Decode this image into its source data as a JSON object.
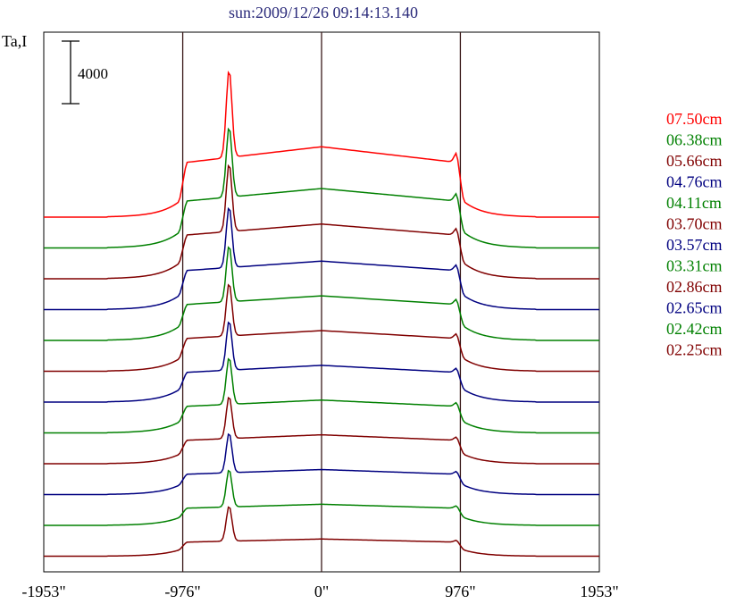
{
  "chart_data": {
    "type": "line",
    "title": "sun:2009/12/26 09:14:13.140",
    "ylabel": "Ta,I",
    "xlabel": "",
    "xlim": [
      -1953,
      1953
    ],
    "x_ticks": [
      -1953,
      -976,
      0,
      976,
      1953
    ],
    "x_tick_labels": [
      "-1953\"",
      "-976\"",
      "0\"",
      "976\"",
      "1953\""
    ],
    "vertical_lines_at": [
      -976,
      0,
      976
    ],
    "scale_bar": {
      "label": "4000",
      "value": 4000
    },
    "grid": false,
    "legend_position": "right",
    "series": [
      {
        "name": "07.50cm",
        "color": "#ff0000",
        "offset": 0,
        "peak": 7500,
        "tail": 1000,
        "limb": 1000,
        "rise": 3500
      },
      {
        "name": "06.38cm",
        "color": "#008000",
        "offset": 1,
        "peak": 6000,
        "tail": 1000,
        "limb": 800,
        "rise": 3000
      },
      {
        "name": "05.66cm",
        "color": "#800000",
        "offset": 2,
        "peak": 5800,
        "tail": 1000,
        "limb": 700,
        "rise": 2800
      },
      {
        "name": "04.76cm",
        "color": "#000080",
        "offset": 3,
        "peak": 5200,
        "tail": 900,
        "limb": 600,
        "rise": 2500
      },
      {
        "name": "04.11cm",
        "color": "#008000",
        "offset": 4,
        "peak": 4800,
        "tail": 900,
        "limb": 550,
        "rise": 2300
      },
      {
        "name": "03.70cm",
        "color": "#800000",
        "offset": 5,
        "peak": 4500,
        "tail": 800,
        "limb": 500,
        "rise": 2100
      },
      {
        "name": "03.57cm",
        "color": "#000080",
        "offset": 6,
        "peak": 4200,
        "tail": 800,
        "limb": 450,
        "rise": 1900
      },
      {
        "name": "03.31cm",
        "color": "#008000",
        "offset": 7,
        "peak": 4000,
        "tail": 700,
        "limb": 400,
        "rise": 1700
      },
      {
        "name": "02.86cm",
        "color": "#800000",
        "offset": 8,
        "peak": 3600,
        "tail": 600,
        "limb": 350,
        "rise": 1500
      },
      {
        "name": "02.65cm",
        "color": "#000080",
        "offset": 9,
        "peak": 3400,
        "tail": 600,
        "limb": 300,
        "rise": 1300
      },
      {
        "name": "02.42cm",
        "color": "#008000",
        "offset": 10,
        "peak": 3200,
        "tail": 500,
        "limb": 250,
        "rise": 1100
      },
      {
        "name": "02.25cm",
        "color": "#800000",
        "offset": 11,
        "peak": 3000,
        "tail": 400,
        "limb": 200,
        "rise": 900
      }
    ]
  }
}
